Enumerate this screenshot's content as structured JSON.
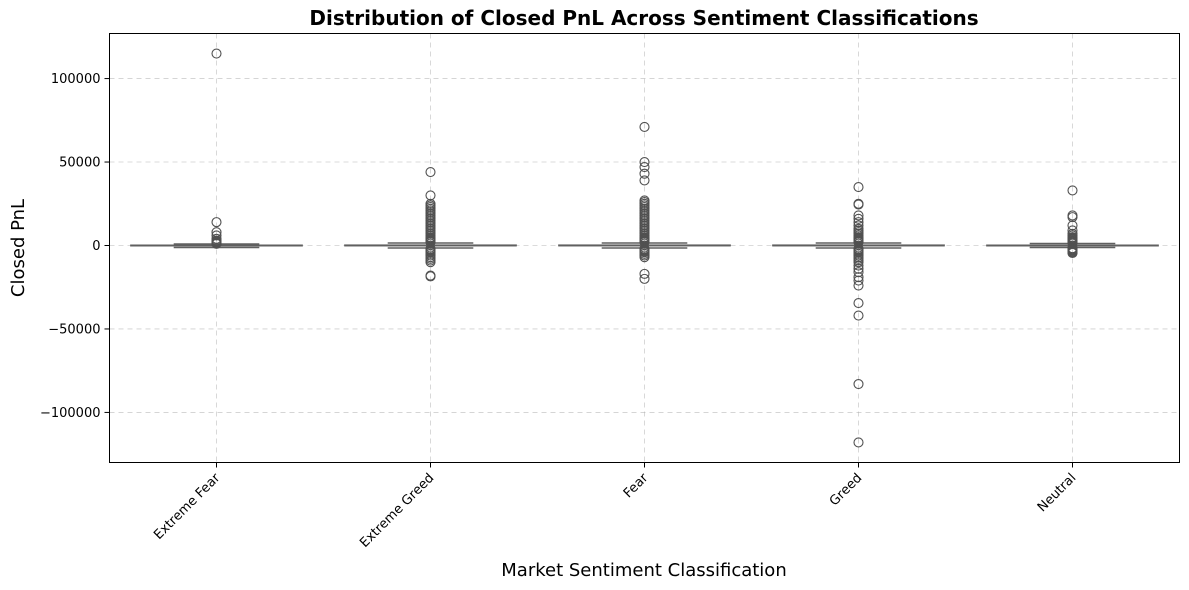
{
  "chart_data": {
    "type": "box",
    "title": "Distribution of Closed PnL Across Sentiment Classifications",
    "xlabel": "Market Sentiment Classification",
    "ylabel": "Closed PnL",
    "ylim": [
      -130000,
      127000
    ],
    "yticks": [
      -100000,
      -50000,
      0,
      50000,
      100000
    ],
    "ytick_labels": [
      "−100000",
      "−50000",
      "0",
      "50000",
      "100000"
    ],
    "grid": true,
    "categories": [
      "Extreme Fear",
      "Extreme Greed",
      "Fear",
      "Greed",
      "Neutral"
    ],
    "series": [
      {
        "category": "Extreme Fear",
        "whisker_low": -1200,
        "q1": -50,
        "median": 0,
        "q3": 150,
        "whisker_high": 900,
        "outliers": [
          115000,
          14000,
          8000,
          6000,
          4000,
          3000,
          2500,
          2000,
          1600,
          1200,
          1000
        ]
      },
      {
        "category": "Extreme Greed",
        "whisker_low": -1500,
        "q1": -60,
        "median": 0,
        "q3": 200,
        "whisker_high": 1500,
        "outliers": [
          44000,
          30000,
          25000,
          24000,
          23000,
          22000,
          21000,
          20000,
          19000,
          18000,
          17000,
          16000,
          15000,
          14000,
          13000,
          12000,
          11000,
          10000,
          9000,
          8000,
          7000,
          6000,
          5000,
          4500,
          4000,
          3500,
          3000,
          2500,
          2000,
          -2000,
          -2500,
          -3000,
          -3500,
          -4000,
          -5000,
          -6000,
          -7000,
          -8000,
          -9000,
          -10000,
          -18000,
          -18500
        ]
      },
      {
        "category": "Fear",
        "whisker_low": -1500,
        "q1": -60,
        "median": 0,
        "q3": 200,
        "whisker_high": 1500,
        "outliers": [
          71000,
          50000,
          47000,
          43000,
          39000,
          27000,
          26000,
          25000,
          24000,
          23000,
          22000,
          21000,
          20000,
          19000,
          18000,
          17000,
          16000,
          15000,
          14000,
          13000,
          12000,
          11000,
          10000,
          9000,
          8000,
          7000,
          6000,
          5000,
          4500,
          4000,
          3500,
          3000,
          2500,
          2000,
          -2000,
          -2500,
          -3000,
          -3500,
          -4000,
          -5000,
          -6000,
          -7000,
          -17000,
          -20000
        ]
      },
      {
        "category": "Greed",
        "whisker_low": -1500,
        "q1": -60,
        "median": 0,
        "q3": 200,
        "whisker_high": 1500,
        "outliers": [
          35000,
          25000,
          24500,
          18000,
          16000,
          14000,
          12000,
          10000,
          9000,
          8000,
          7000,
          6000,
          5000,
          4500,
          4000,
          3500,
          3000,
          2500,
          2000,
          -2000,
          -2500,
          -3000,
          -3500,
          -4000,
          -5000,
          -6000,
          -7000,
          -8000,
          -9000,
          -10000,
          -12000,
          -14000,
          -16000,
          -19000,
          -21000,
          -24000,
          -34500,
          -42000,
          -83000,
          -118000
        ]
      },
      {
        "category": "Neutral",
        "whisker_low": -1200,
        "q1": -50,
        "median": 0,
        "q3": 150,
        "whisker_high": 1200,
        "outliers": [
          33000,
          18000,
          17000,
          12000,
          9000,
          7000,
          6000,
          5000,
          4500,
          4000,
          3500,
          3000,
          2500,
          2000,
          1600,
          -1600,
          -2000,
          -2500,
          -3000,
          -3500,
          -4000,
          -4500
        ]
      }
    ]
  }
}
